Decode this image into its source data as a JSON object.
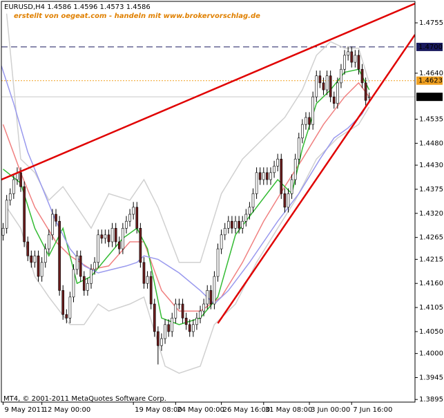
{
  "chart_data": {
    "type": "candlestick",
    "title": "EURUSD,H4  1.4586 1.4596 1.4573 1.4586",
    "annotation": "erstellt von oegeat.com - handeln mit www.brokervorschlag.de",
    "footer": "MT4, © 2001-2011 MetaQuotes Software Corp.",
    "up_color": "#ffffff",
    "down_color": "#6b1e1e",
    "wick_color": "#000000",
    "xlim": [
      -0.5,
      117
    ],
    "xticks": [
      {
        "value": 0,
        "label": "9 May 2011"
      },
      {
        "value": 11,
        "label": "12 May 00:00"
      },
      {
        "value": 37,
        "label": "19 May 08:00"
      },
      {
        "value": 49,
        "label": "24 May 00:00"
      },
      {
        "value": 62,
        "label": "26 May 16:00"
      },
      {
        "value": 74,
        "label": "31 May 08:00"
      },
      {
        "value": 87,
        "label": "3 Jun 00:00"
      },
      {
        "value": 99,
        "label": "7 Jun 16:00"
      }
    ],
    "ylim": [
      1.3889,
      1.4804
    ],
    "yticks": [
      1.4755,
      {
        "value": 1.464,
        "label": "1.4640"
      },
      1.4535,
      {
        "value": 1.448,
        "label": "1.4480"
      },
      {
        "value": 1.443,
        "label": "1.4430"
      },
      1.4375,
      {
        "value": 1.432,
        "label": "1.4320"
      },
      1.4265,
      1.4215,
      {
        "value": 1.416,
        "label": "1.4160"
      },
      1.4105,
      {
        "value": 1.405,
        "label": "1.4050"
      },
      {
        "value": 1.4,
        "label": "1.4000"
      },
      1.3945,
      1.3895
    ],
    "open": [
      1.427,
      1.4286,
      1.435,
      1.4365,
      1.4397,
      1.4413,
      1.4381,
      1.4255,
      1.4223,
      1.4208,
      1.4223,
      1.4176,
      1.4208,
      1.4239,
      1.4271,
      1.4318,
      1.4302,
      1.4144,
      1.4089,
      1.4081,
      1.4129,
      1.4192,
      1.4223,
      1.4176,
      1.4144,
      1.416,
      1.4192,
      1.4208,
      1.4271,
      1.4263,
      1.4271,
      1.4255,
      1.4286,
      1.4255,
      1.4239,
      1.4286,
      1.4302,
      1.4318,
      1.4334,
      1.4286,
      1.4208,
      1.416,
      1.4176,
      1.4113,
      1.405,
      1.4018,
      1.4034,
      1.4066,
      1.405,
      1.4081,
      1.4113,
      1.4113,
      1.4081,
      1.4066,
      1.405,
      1.4066,
      1.4081,
      1.4097,
      1.4113,
      1.4144,
      1.4113,
      1.4176,
      1.4239,
      1.4271,
      1.4286,
      1.4302,
      1.4286,
      1.4302,
      1.4286,
      1.4302,
      1.4318,
      1.4334,
      1.4365,
      1.4413,
      1.4397,
      1.4413,
      1.4397,
      1.4413,
      1.4428,
      1.4444,
      1.4365,
      1.4334,
      1.4365,
      1.4397,
      1.4444,
      1.4492,
      1.4523,
      1.4539,
      1.4523,
      1.4586,
      1.4634,
      1.4618,
      1.4602,
      1.4634,
      1.4586,
      1.4571,
      1.4618,
      1.4649,
      1.4681,
      1.4689,
      1.4665,
      1.4681,
      1.4649,
      1.4618,
      1.4586
    ],
    "high": [
      1.4298,
      1.4362,
      1.4377,
      1.4409,
      1.4425,
      1.4425,
      1.4393,
      1.4267,
      1.4235,
      1.4235,
      1.4235,
      1.422,
      1.4251,
      1.4283,
      1.433,
      1.433,
      1.4314,
      1.4156,
      1.4101,
      1.4141,
      1.4204,
      1.4235,
      1.4235,
      1.4188,
      1.4172,
      1.4204,
      1.422,
      1.4283,
      1.4283,
      1.4283,
      1.4283,
      1.4298,
      1.4298,
      1.4267,
      1.4298,
      1.4314,
      1.433,
      1.4346,
      1.4346,
      1.4298,
      1.422,
      1.4188,
      1.4188,
      1.4125,
      1.4062,
      1.4046,
      1.4078,
      1.4078,
      1.4093,
      1.4125,
      1.4125,
      1.4125,
      1.4093,
      1.4078,
      1.4078,
      1.4093,
      1.4109,
      1.4125,
      1.4156,
      1.4156,
      1.4188,
      1.4251,
      1.4283,
      1.4298,
      1.4314,
      1.4314,
      1.4314,
      1.4314,
      1.4314,
      1.433,
      1.4346,
      1.4377,
      1.4425,
      1.4425,
      1.4425,
      1.4425,
      1.4425,
      1.444,
      1.4456,
      1.4456,
      1.4377,
      1.4377,
      1.4409,
      1.4456,
      1.4504,
      1.4535,
      1.4551,
      1.4551,
      1.4598,
      1.4646,
      1.4646,
      1.463,
      1.4646,
      1.4646,
      1.4598,
      1.463,
      1.4661,
      1.4693,
      1.4701,
      1.4701,
      1.4693,
      1.4693,
      1.4661,
      1.463,
      1.4596
    ],
    "low": [
      1.4258,
      1.4274,
      1.4338,
      1.4353,
      1.4385,
      1.4369,
      1.4243,
      1.4211,
      1.4196,
      1.4196,
      1.4164,
      1.4164,
      1.4196,
      1.4227,
      1.4259,
      1.429,
      1.4132,
      1.4077,
      1.4069,
      1.4069,
      1.4117,
      1.418,
      1.4164,
      1.4132,
      1.4132,
      1.4148,
      1.418,
      1.4196,
      1.4251,
      1.4251,
      1.4243,
      1.4243,
      1.4243,
      1.4227,
      1.4227,
      1.4274,
      1.429,
      1.4306,
      1.4274,
      1.4196,
      1.4148,
      1.4148,
      1.4101,
      1.4038,
      1.3975,
      1.4006,
      1.4022,
      1.4038,
      1.4038,
      1.4069,
      1.4101,
      1.4069,
      1.4054,
      1.4038,
      1.4038,
      1.4054,
      1.4069,
      1.4085,
      1.4101,
      1.4101,
      1.4101,
      1.4164,
      1.4227,
      1.4259,
      1.4274,
      1.4274,
      1.4274,
      1.4274,
      1.4274,
      1.429,
      1.4306,
      1.4322,
      1.4353,
      1.4385,
      1.4385,
      1.4385,
      1.4385,
      1.4401,
      1.4416,
      1.4353,
      1.4322,
      1.4322,
      1.4353,
      1.4385,
      1.4432,
      1.448,
      1.4511,
      1.4511,
      1.4511,
      1.4574,
      1.4606,
      1.459,
      1.459,
      1.4574,
      1.4559,
      1.4559,
      1.4606,
      1.4637,
      1.4669,
      1.4653,
      1.4653,
      1.4637,
      1.4606,
      1.4566,
      1.4573
    ],
    "close": [
      1.4286,
      1.435,
      1.4365,
      1.4397,
      1.4413,
      1.4381,
      1.4255,
      1.4223,
      1.4208,
      1.4223,
      1.4176,
      1.4208,
      1.4239,
      1.4271,
      1.4318,
      1.4302,
      1.4144,
      1.4089,
      1.4081,
      1.4129,
      1.4192,
      1.4223,
      1.4176,
      1.4144,
      1.416,
      1.4192,
      1.4208,
      1.4271,
      1.4263,
      1.4271,
      1.4255,
      1.4286,
      1.4255,
      1.4239,
      1.4286,
      1.4302,
      1.4318,
      1.4334,
      1.4286,
      1.4208,
      1.416,
      1.4176,
      1.4113,
      1.405,
      1.4018,
      1.4034,
      1.4066,
      1.405,
      1.4081,
      1.4113,
      1.4113,
      1.4081,
      1.4066,
      1.405,
      1.4066,
      1.4081,
      1.4097,
      1.4113,
      1.4144,
      1.4113,
      1.4176,
      1.4239,
      1.4271,
      1.4286,
      1.4302,
      1.4286,
      1.4302,
      1.4286,
      1.4302,
      1.4318,
      1.4334,
      1.4365,
      1.4413,
      1.4397,
      1.4413,
      1.4397,
      1.4413,
      1.4428,
      1.4444,
      1.4365,
      1.4334,
      1.4365,
      1.4397,
      1.4444,
      1.4492,
      1.4523,
      1.4539,
      1.4523,
      1.4586,
      1.4634,
      1.4618,
      1.4602,
      1.4634,
      1.4586,
      1.4571,
      1.4618,
      1.4649,
      1.4681,
      1.4689,
      1.4665,
      1.4681,
      1.4649,
      1.4618,
      1.4578,
      1.4586
    ],
    "indicators": [
      {
        "color": "#d0d0d0",
        "x": [
          1,
          5,
          9,
          13,
          17,
          21,
          25,
          30,
          36,
          40,
          44,
          50,
          56,
          62,
          68,
          74,
          80,
          85,
          89,
          93,
          97,
          101,
          104
        ],
        "values": [
          1.4776,
          1.4444,
          1.4413,
          1.435,
          1.4381,
          1.4334,
          1.4286,
          1.4365,
          1.435,
          1.4397,
          1.4334,
          1.4208,
          1.4208,
          1.4365,
          1.4444,
          1.4492,
          1.4539,
          1.4602,
          1.4681,
          1.4712,
          1.4697,
          1.4697,
          1.4618
        ]
      },
      {
        "color": "#d0d0d0",
        "x": [
          1,
          5,
          9,
          13,
          19,
          23,
          27,
          30,
          36,
          40,
          46,
          50,
          56,
          60,
          66,
          72,
          78,
          83,
          89,
          95,
          101,
          104
        ],
        "values": [
          1.4334,
          1.4286,
          1.4176,
          1.4129,
          1.4066,
          1.4066,
          1.4113,
          1.4097,
          1.4113,
          1.4129,
          1.3971,
          1.3955,
          1.3971,
          1.4066,
          1.4113,
          1.4208,
          1.4286,
          1.435,
          1.4444,
          1.4492,
          1.4523,
          1.4563
        ]
      },
      {
        "color": "#f08080",
        "x": [
          0,
          5,
          9,
          15,
          19,
          25,
          30,
          36,
          40,
          45,
          50,
          56,
          62,
          68,
          74,
          80,
          85,
          91,
          97,
          101,
          104
        ],
        "values": [
          1.4523,
          1.4413,
          1.4334,
          1.4255,
          1.4223,
          1.4192,
          1.42,
          1.4255,
          1.4255,
          1.4144,
          1.4097,
          1.4097,
          1.4129,
          1.4208,
          1.4302,
          1.4381,
          1.4444,
          1.4523,
          1.4586,
          1.4618,
          1.4586
        ]
      },
      {
        "color": "#33bb33",
        "x": [
          0,
          5,
          9,
          13,
          17,
          21,
          25,
          29,
          34,
          38,
          41,
          45,
          50,
          56,
          61,
          66,
          72,
          78,
          82,
          85,
          89,
          93,
          97,
          101,
          104
        ],
        "values": [
          1.4421,
          1.4389,
          1.4286,
          1.4223,
          1.4286,
          1.416,
          1.4176,
          1.4215,
          1.4263,
          1.4286,
          1.4239,
          1.4081,
          1.4066,
          1.4081,
          1.4129,
          1.4271,
          1.4334,
          1.4397,
          1.4365,
          1.4468,
          1.4571,
          1.4602,
          1.4642,
          1.4649,
          1.4602
        ]
      },
      {
        "color": "#9999ee",
        "x": [
          -0.5,
          3,
          7,
          11,
          15,
          19,
          23,
          27,
          31,
          35,
          38,
          40,
          44,
          50,
          56,
          60,
          64,
          70,
          78,
          84,
          90,
          94,
          98,
          102,
          104
        ],
        "values": [
          1.4657,
          1.4571,
          1.446,
          1.4381,
          1.4302,
          1.4239,
          1.42,
          1.4184,
          1.4192,
          1.42,
          1.4208,
          1.4223,
          1.4215,
          1.4184,
          1.4144,
          1.4113,
          1.4144,
          1.4208,
          1.4302,
          1.4365,
          1.4444,
          1.4492,
          1.4515,
          1.4547,
          1.4578
        ]
      }
    ],
    "trendlines": [
      {
        "color": "#e00000",
        "x": [
          -0.5,
          117
        ],
        "values": [
          1.4397,
          1.4799
        ]
      },
      {
        "color": "#e00000",
        "x": [
          61,
          117
        ],
        "values": [
          1.4069,
          1.4728
        ]
      }
    ],
    "hlines": [
      {
        "value": 1.47,
        "label": "1.4700",
        "color": "#1a1a5e",
        "style": "dashed",
        "label_bg": "#1a1a5e",
        "label_color": "#ffffff"
      },
      {
        "value": 1.4623,
        "label": "1.4623",
        "color": "#f0a020",
        "style": "dotted",
        "label_bg": "#f0a020",
        "label_color": "#ffffff"
      },
      {
        "value": 1.4586,
        "label": "1.4586",
        "color": "#c8c8c8",
        "style": "solid",
        "label_bg": "#000000",
        "label_color": "#ffffff"
      }
    ]
  }
}
